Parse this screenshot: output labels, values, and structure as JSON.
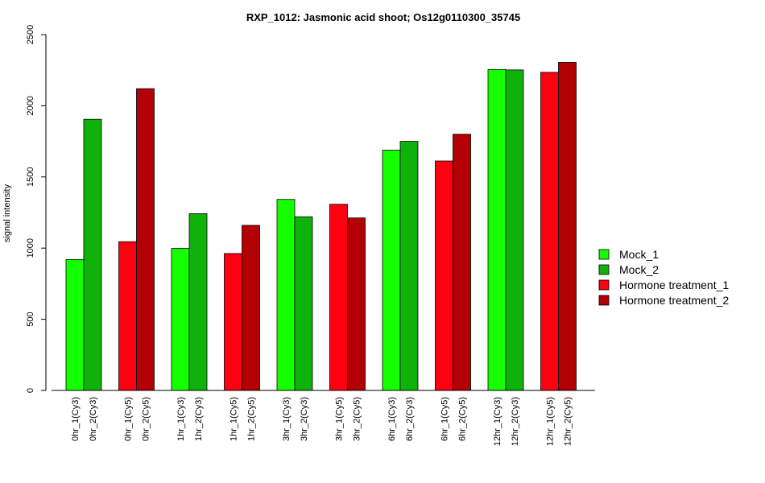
{
  "chart_data": {
    "type": "bar",
    "title": "RXP_1012: Jasmonic acid shoot; Os12g0110300_35745",
    "ylabel": "signal intensity",
    "xlabel": "",
    "ylim": [
      0,
      2500
    ],
    "yticks": [
      0,
      500,
      1000,
      1500,
      2000,
      2500
    ],
    "grid": false,
    "legend_position": "right",
    "categories": [
      "0hr_1(Cy3)",
      "0hr_2(Cy3)",
      "0hr_1(Cy5)",
      "0hr_2(Cy5)",
      "1hr_1(Cy3)",
      "1hr_2(Cy3)",
      "1hr_1(Cy5)",
      "1hr_2(Cy5)",
      "3hr_1(Cy3)",
      "3hr_2(Cy3)",
      "3hr_1(Cy5)",
      "3hr_2(Cy5)",
      "6hr_1(Cy3)",
      "6hr_2(Cy3)",
      "6hr_1(Cy5)",
      "6hr_2(Cy5)",
      "12hr_1(Cy3)",
      "12hr_2(Cy3)",
      "12hr_1(Cy5)",
      "12hr_2(Cy5)"
    ],
    "values": [
      920,
      1905,
      1045,
      2120,
      998,
      1242,
      962,
      1160,
      1342,
      1220,
      1308,
      1212,
      1688,
      1750,
      1612,
      1800,
      2255,
      2252,
      2235,
      2305
    ],
    "bar_series": [
      0,
      1,
      2,
      3,
      0,
      1,
      2,
      3,
      0,
      1,
      2,
      3,
      0,
      1,
      2,
      3,
      0,
      1,
      2,
      3
    ],
    "legend": [
      {
        "name": "Mock_1",
        "color": "#14ff00"
      },
      {
        "name": "Mock_2",
        "color": "#0fb20a"
      },
      {
        "name": "Hormone treatment_1",
        "color": "#ff0010"
      },
      {
        "name": "Hormone treatment_2",
        "color": "#b30005"
      }
    ]
  }
}
